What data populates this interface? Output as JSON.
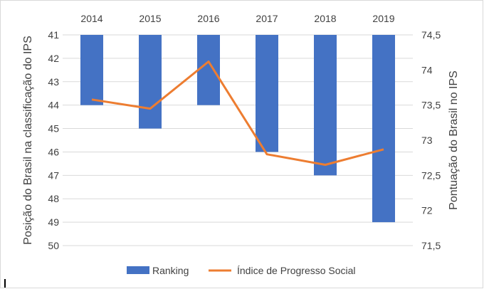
{
  "chart_data": {
    "type": "bar",
    "categories": [
      "2014",
      "2015",
      "2016",
      "2017",
      "2018",
      "2019"
    ],
    "series": [
      {
        "name": "Ranking",
        "kind": "bar",
        "axis": "left",
        "values": [
          44,
          45,
          44,
          46,
          47,
          49
        ],
        "color": "#4472C4"
      },
      {
        "name": "Índice de Progresso Social",
        "kind": "line",
        "axis": "right",
        "values": [
          73.58,
          73.45,
          74.12,
          72.8,
          72.65,
          72.87
        ],
        "color": "#ED7D31"
      }
    ],
    "ylabel_left": "Posição do Brasil na classificação do IPS",
    "ylabel_right": "Pontuação do Brasil no IPS",
    "yleft": {
      "min": 41,
      "max": 50,
      "inverted": true,
      "ticks": [
        "41",
        "42",
        "43",
        "44",
        "45",
        "46",
        "47",
        "48",
        "49",
        "50"
      ]
    },
    "yright": {
      "min": 71.5,
      "max": 74.5,
      "ticks": [
        "74,5",
        "74",
        "73,5",
        "73",
        "72,5",
        "72",
        "71,5"
      ]
    },
    "grid": true,
    "legend_position": "bottom"
  }
}
